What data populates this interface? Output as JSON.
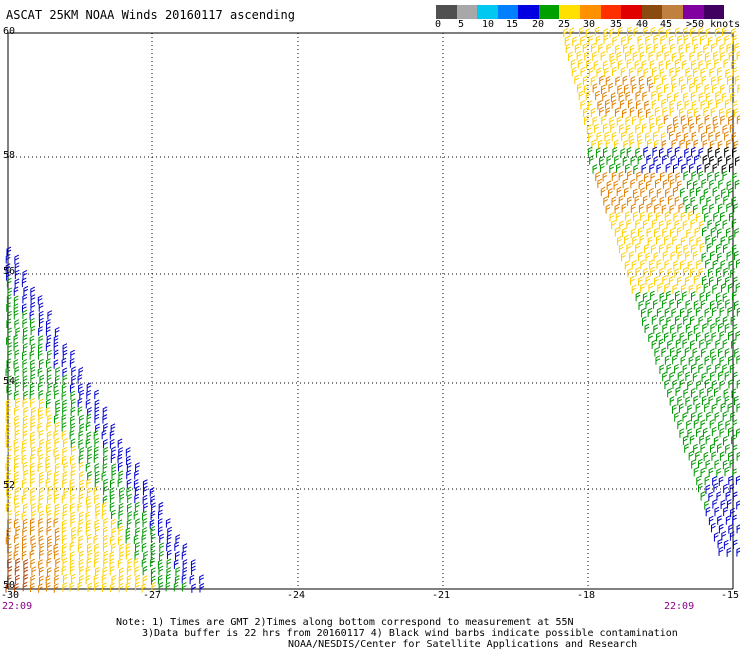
{
  "title": "ASCAT 25KM NOAA Winds 20160117 ascending",
  "scale": {
    "labels": [
      "0",
      "5",
      "10",
      "15",
      "20",
      "25",
      "30",
      "35",
      "40",
      "45",
      ">50 knots"
    ],
    "colors": [
      "#505050",
      "#a8a8a8",
      "#00c8f0",
      "#0080ff",
      "#0000e0",
      "#00a000",
      "#ffe000",
      "#ff9000",
      "#ff3000",
      "#e00000",
      "#8a4a10",
      "#c08040",
      "#8000a0",
      "#400060"
    ]
  },
  "lat_labels": [
    "60",
    "58",
    "56",
    "54",
    "52",
    "50"
  ],
  "lon_labels": [
    "-30",
    "-27",
    "-24",
    "-21",
    "-18",
    "-15"
  ],
  "times": {
    "left": "22:09",
    "right": "22:09"
  },
  "notes": {
    "line1": "Note: 1) Times are GMT 2)Times along bottom correspond to measurement at 55N",
    "line2": "3)Data buffer is 22 hrs from 20160117 4) Black wind barbs indicate possible contamination",
    "line3": "NOAA/NESDIS/Center for Satellite Applications and Research"
  },
  "barb_colors": {
    "blue": "#0000cc",
    "green": "#009900",
    "yellow": "#ffd000",
    "orange": "#e08000",
    "darkorange": "#b04000",
    "black": "#000000"
  }
}
